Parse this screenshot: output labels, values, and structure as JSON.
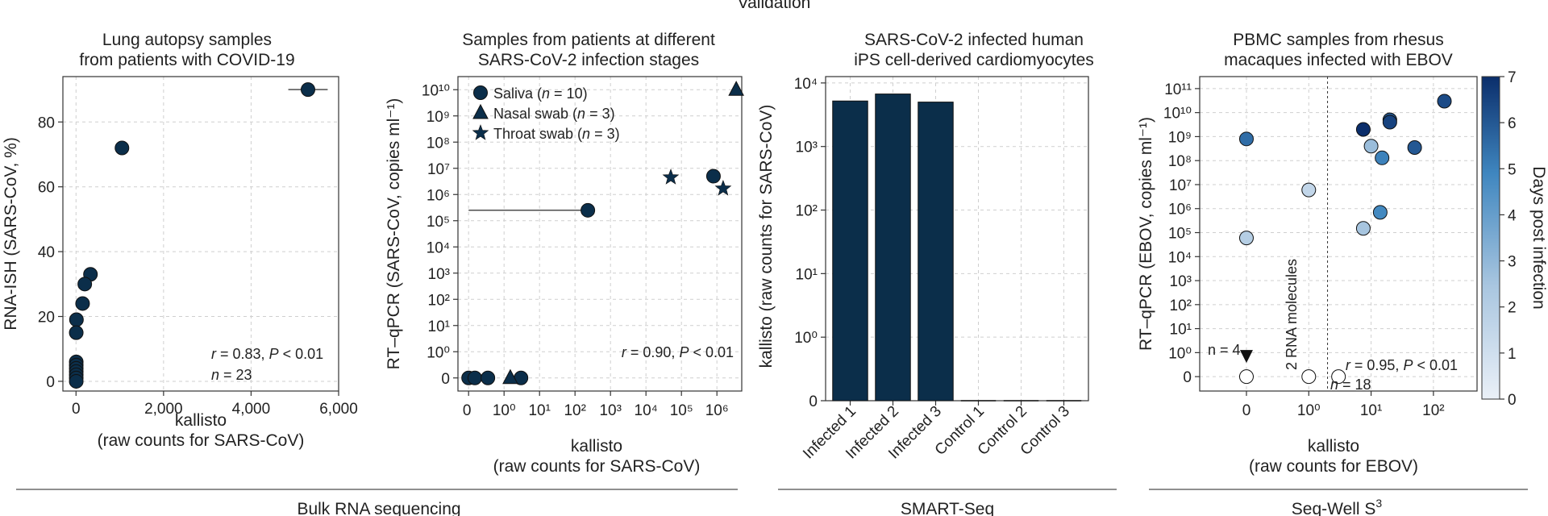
{
  "figure": {
    "top_label": "Validation",
    "sections": [
      {
        "label": "Bulk RNA sequencing"
      },
      {
        "label": "SMART-Seq"
      },
      {
        "label": "Seq-Well S",
        "sup": "3"
      }
    ]
  },
  "chart_data": [
    {
      "id": "p1",
      "type": "scatter",
      "title": [
        "Lung autopsy samples",
        "from patients with COVID-19"
      ],
      "xlabel": [
        "kallisto",
        "(raw counts for SARS-CoV)"
      ],
      "ylabel": "RNA-ISH (SARS-CoV, %)",
      "xlim": [
        -300,
        6000
      ],
      "ylim": [
        -3,
        94
      ],
      "xticks": [
        {
          "v": 0,
          "l": "0"
        },
        {
          "v": 2000,
          "l": "2,000"
        },
        {
          "v": 4000,
          "l": "4,000"
        },
        {
          "v": 6000,
          "l": "6,000"
        }
      ],
      "yticks": [
        {
          "v": 0,
          "l": "0"
        },
        {
          "v": 20,
          "l": "20"
        },
        {
          "v": 40,
          "l": "40"
        },
        {
          "v": 60,
          "l": "60"
        },
        {
          "v": 80,
          "l": "80"
        }
      ],
      "color": "#0b2e4a",
      "points": [
        {
          "x": 5300,
          "y": 90,
          "xerr": [
            4850,
            5750
          ]
        },
        {
          "x": 1050,
          "y": 72
        },
        {
          "x": 330,
          "y": 33
        },
        {
          "x": 200,
          "y": 30
        },
        {
          "x": 150,
          "y": 24
        },
        {
          "x": 10,
          "y": 19
        },
        {
          "x": 5,
          "y": 15
        },
        {
          "x": 5,
          "y": 6
        },
        {
          "x": 5,
          "y": 5
        },
        {
          "x": 5,
          "y": 4
        },
        {
          "x": 5,
          "y": 3
        },
        {
          "x": 5,
          "y": 2
        },
        {
          "x": 5,
          "y": 1
        },
        {
          "x": 5,
          "y": 0
        }
      ],
      "annotation": {
        "r": "r",
        "stat": " = 0.83, ",
        "p": "P",
        "pval": " < 0.01",
        "n": "n",
        "nval": " = 23"
      }
    },
    {
      "id": "p2",
      "type": "scatter",
      "title": [
        "Samples from patients at different",
        "SARS-CoV-2 infection stages"
      ],
      "xlabel": [
        "kallisto",
        "(raw counts for SARS-CoV)"
      ],
      "ylabel": "RT–qPCR (SARS-CoV, copies ml⁻¹)",
      "xscale": "symlog",
      "yscale": "symlog",
      "xticks": [
        {
          "v": 0,
          "l": "0"
        },
        {
          "v": 1,
          "l": "10⁰"
        },
        {
          "v": 10,
          "l": "10¹"
        },
        {
          "v": 100,
          "l": "10²"
        },
        {
          "v": 1000,
          "l": "10³"
        },
        {
          "v": 10000,
          "l": "10⁴"
        },
        {
          "v": 100000,
          "l": "10⁵"
        },
        {
          "v": 1000000,
          "l": "10⁶"
        }
      ],
      "yticks": [
        {
          "v": 0,
          "l": "0"
        },
        {
          "v": 1,
          "l": "10⁰"
        },
        {
          "v": 10,
          "l": "10¹"
        },
        {
          "v": 100,
          "l": "10²"
        },
        {
          "v": 1000,
          "l": "10³"
        },
        {
          "v": 10000,
          "l": "10⁴"
        },
        {
          "v": 100000,
          "l": "10⁵"
        },
        {
          "v": 1000000,
          "l": "10⁶"
        },
        {
          "v": 10000000,
          "l": "10⁷"
        },
        {
          "v": 100000000,
          "l": "10⁸"
        },
        {
          "v": 1000000000,
          "l": "10⁹"
        },
        {
          "v": 10000000000,
          "l": "10¹⁰"
        }
      ],
      "color": "#0b2e4a",
      "legend": [
        {
          "marker": "circle",
          "label": "Saliva (",
          "n": "n",
          "count": " = 10)"
        },
        {
          "marker": "triangle",
          "label": "Nasal swab (",
          "n": "n",
          "count": " = 3)"
        },
        {
          "marker": "star",
          "label": "Throat swab (",
          "n": "n",
          "count": " = 3)"
        }
      ],
      "series": [
        {
          "name": "Saliva",
          "marker": "circle",
          "points": [
            {
              "x": 0,
              "y": 0
            },
            {
              "x": 0.15,
              "y": 0
            },
            {
              "x": 0.35,
              "y": 0
            },
            {
              "x": 3,
              "y": 0
            },
            {
              "x": 230,
              "y": 250000,
              "xerr": [
                0,
                230
              ]
            },
            {
              "x": 800000,
              "y": 5000000
            }
          ]
        },
        {
          "name": "Nasal swab",
          "marker": "triangle",
          "points": [
            {
              "x": 1.5,
              "y": 0
            },
            {
              "x": 3500000,
              "y": 10000000000
            }
          ]
        },
        {
          "name": "Throat swab",
          "marker": "star",
          "points": [
            {
              "x": 50000,
              "y": 4500000
            },
            {
              "x": 1500000,
              "y": 1700000
            }
          ]
        }
      ],
      "annotation": {
        "r": "r",
        "stat": " = 0.90, ",
        "p": "P",
        "pval": " < 0.01"
      }
    },
    {
      "id": "p3",
      "type": "bar",
      "title": [
        "SARS-CoV-2 infected human",
        "iPS cell-derived cardiomyocytes"
      ],
      "ylabel": "kallisto (raw counts for SARS-CoV)",
      "yscale": "symlog",
      "yticks": [
        {
          "v": 0,
          "l": "0"
        },
        {
          "v": 1,
          "l": "10⁰"
        },
        {
          "v": 10,
          "l": "10¹"
        },
        {
          "v": 100,
          "l": "10²"
        },
        {
          "v": 1000,
          "l": "10³"
        },
        {
          "v": 10000,
          "l": "10⁴"
        }
      ],
      "categories": [
        "Infected 1",
        "Infected 2",
        "Infected 3",
        "Control 1",
        "Control 2",
        "Control 3"
      ],
      "values": [
        5200,
        6700,
        5000,
        0,
        0,
        0
      ],
      "color": "#0b2e4a"
    },
    {
      "id": "p4",
      "type": "scatter",
      "title": [
        "PBMC samples from rhesus",
        "macaques infected with EBOV"
      ],
      "xlabel": [
        "kallisto",
        "(raw counts for EBOV)"
      ],
      "ylabel": "RT–qPCR (EBOV, copies ml⁻¹)",
      "xscale": "symlog",
      "yscale": "symlog",
      "xticks": [
        {
          "v": 0,
          "l": "0"
        },
        {
          "v": 1,
          "l": "10⁰"
        },
        {
          "v": 10,
          "l": "10¹"
        },
        {
          "v": 100,
          "l": "10²"
        }
      ],
      "yticks": [
        {
          "v": 0,
          "l": "0"
        },
        {
          "v": 1,
          "l": "10⁰"
        },
        {
          "v": 10,
          "l": "10¹"
        },
        {
          "v": 100,
          "l": "10²"
        },
        {
          "v": 1000,
          "l": "10³"
        },
        {
          "v": 10000,
          "l": "10⁴"
        },
        {
          "v": 100000,
          "l": "10⁵"
        },
        {
          "v": 1000000,
          "l": "10⁶"
        },
        {
          "v": 10000000,
          "l": "10⁷"
        },
        {
          "v": 100000000,
          "l": "10⁸"
        },
        {
          "v": 1000000000,
          "l": "10⁹"
        },
        {
          "v": 10000000000,
          "l": "10¹⁰"
        },
        {
          "v": 100000000000,
          "l": "10¹¹"
        }
      ],
      "threshold": {
        "x": 2,
        "label": "2 RNA molecules"
      },
      "colorbar": {
        "label": "Days post infection",
        "min": 0,
        "max": 7,
        "ticks": [
          0,
          1,
          2,
          3,
          4,
          5,
          6,
          7
        ]
      },
      "n_marker": {
        "x": 0,
        "label": "n = 4"
      },
      "points": [
        {
          "x": 0,
          "y": 800000000,
          "day": 5.5
        },
        {
          "x": 0,
          "y": 60000,
          "day": 2
        },
        {
          "x": 0,
          "y": 0,
          "day": 0
        },
        {
          "x": 1,
          "y": 6000000,
          "day": 1.5
        },
        {
          "x": 1,
          "y": 0,
          "day": 0
        },
        {
          "x": 3,
          "y": 0,
          "day": 0
        },
        {
          "x": 7.5,
          "y": 2000000000,
          "day": 7
        },
        {
          "x": 10,
          "y": 400000000,
          "day": 2.8
        },
        {
          "x": 15,
          "y": 130000000,
          "day": 5
        },
        {
          "x": 20,
          "y": 5000000000,
          "day": 6
        },
        {
          "x": 20,
          "y": 4000000000,
          "day": 6.5
        },
        {
          "x": 50,
          "y": 350000000,
          "day": 6
        },
        {
          "x": 150,
          "y": 30000000000,
          "day": 6.3
        },
        {
          "x": 7.5,
          "y": 150000,
          "day": 2.5
        },
        {
          "x": 14,
          "y": 700000,
          "day": 4.8
        }
      ],
      "annotation": {
        "r": "r",
        "stat": " = 0.95, ",
        "p": "P",
        "pval": " < 0.01",
        "n": "n",
        "nval": " = 18"
      }
    }
  ]
}
